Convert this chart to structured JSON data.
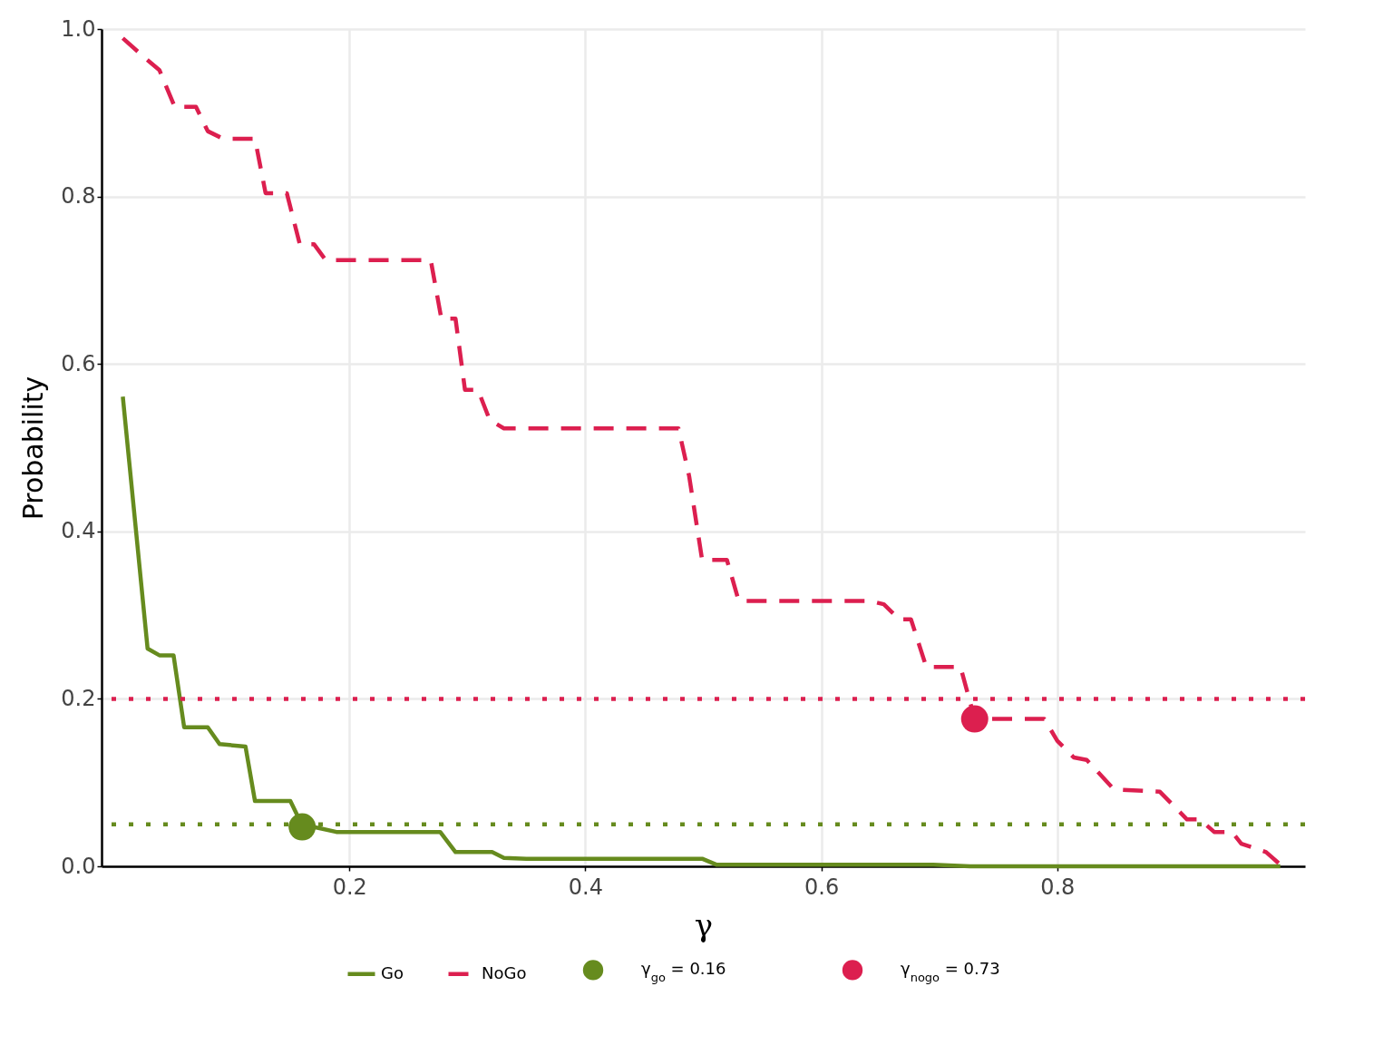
{
  "chart_data": {
    "type": "line",
    "xlabel": "γ",
    "ylabel": "Probability",
    "xlim": [
      -0.01,
      1.01
    ],
    "ylim": [
      0,
      1
    ],
    "xticks": [
      0.2,
      0.4,
      0.6,
      0.8
    ],
    "yticks": [
      {
        "value": 0,
        "label": "0.0"
      },
      {
        "value": 0.2,
        "label": "0.2"
      },
      {
        "value": 0.4,
        "label": "0.4"
      },
      {
        "value": 0.6,
        "label": "0.6"
      },
      {
        "value": 0.8,
        "label": "0.8"
      },
      {
        "value": 1,
        "label": "1.0"
      }
    ],
    "grid": true,
    "legend": "bottom",
    "series": [
      {
        "name": "Go",
        "color": "#668b1e",
        "line_style": "solid",
        "x": [
          0.008,
          0.029,
          0.039,
          0.051,
          0.06,
          0.08,
          0.09,
          0.112,
          0.12,
          0.15,
          0.16,
          0.173,
          0.189,
          0.277,
          0.29,
          0.321,
          0.331,
          0.35,
          0.499,
          0.511,
          0.695,
          0.726,
          0.989
        ],
        "values": [
          0.561,
          0.26,
          0.252,
          0.252,
          0.166,
          0.166,
          0.146,
          0.143,
          0.078,
          0.078,
          0.049,
          0.046,
          0.041,
          0.041,
          0.017,
          0.017,
          0.01,
          0.009,
          0.009,
          0.002,
          0.002,
          0,
          0
        ]
      },
      {
        "name": "NoGo",
        "color": "#dc1f4f",
        "line_style": "dashed",
        "x": [
          0.008,
          0.028,
          0.039,
          0.052,
          0.07,
          0.08,
          0.093,
          0.12,
          0.129,
          0.147,
          0.158,
          0.17,
          0.18,
          0.269,
          0.278,
          0.29,
          0.298,
          0.309,
          0.319,
          0.331,
          0.479,
          0.488,
          0.499,
          0.52,
          0.53,
          0.641,
          0.653,
          0.666,
          0.676,
          0.689,
          0.718,
          0.73,
          0.789,
          0.8,
          0.814,
          0.825,
          0.848,
          0.887,
          0.91,
          0.921,
          0.933,
          0.948,
          0.956,
          0.977,
          0.989
        ],
        "values": [
          0.989,
          0.964,
          0.951,
          0.907,
          0.907,
          0.878,
          0.869,
          0.869,
          0.804,
          0.804,
          0.743,
          0.743,
          0.724,
          0.724,
          0.654,
          0.654,
          0.569,
          0.569,
          0.533,
          0.523,
          0.523,
          0.466,
          0.366,
          0.366,
          0.317,
          0.317,
          0.313,
          0.295,
          0.295,
          0.238,
          0.238,
          0.176,
          0.176,
          0.15,
          0.13,
          0.127,
          0.092,
          0.089,
          0.056,
          0.056,
          0.041,
          0.041,
          0.027,
          0.017,
          0.002
        ]
      },
      {
        "name": "γ$_{go}$ = 0.16",
        "type": "scatter",
        "marker": "circle",
        "color": "#668b1e",
        "x": [
          0.16
        ],
        "values": [
          0.047
        ]
      },
      {
        "name": "γ$_{nogo}$ = 0.73",
        "type": "scatter",
        "marker": "circle",
        "color": "#dc1f4f",
        "x": [
          0.73
        ],
        "values": [
          0.176
        ]
      }
    ],
    "ref_lines": [
      {
        "axis": "y",
        "value": 0.2,
        "color": "#dc1f4f",
        "line_style": "dotted"
      },
      {
        "axis": "y",
        "value": 0.05,
        "color": "#668b1e",
        "line_style": "dotted"
      }
    ]
  }
}
